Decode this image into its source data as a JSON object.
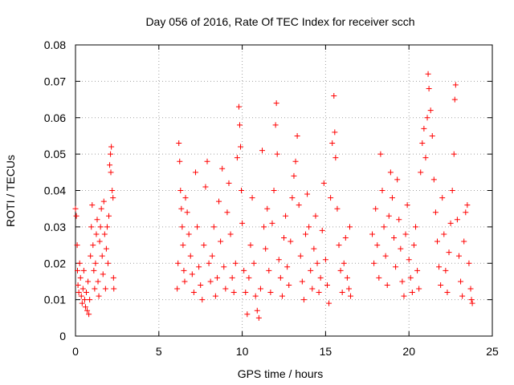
{
  "chart_data": {
    "type": "scatter",
    "title": "Day 056 of 2016, Rate Of TEC Index for receiver scch",
    "xlabel": "GPS time / hours",
    "ylabel": "ROTI / TECUs",
    "xlim": [
      0,
      25
    ],
    "ylim": [
      0,
      0.08
    ],
    "x_ticks": [
      "0",
      "5",
      "10",
      "15",
      "20",
      "25"
    ],
    "y_ticks": [
      "0",
      "0.01",
      "0.02",
      "0.03",
      "0.04",
      "0.05",
      "0.06",
      "0.07",
      "0.08"
    ],
    "x_tick_values": [
      0,
      5,
      10,
      15,
      20,
      25
    ],
    "y_tick_values": [
      0,
      0.01,
      0.02,
      0.03,
      0.04,
      0.05,
      0.06,
      0.07,
      0.08
    ],
    "grid": true,
    "marker": "+",
    "marker_color": "#ff0000",
    "series": [
      {
        "points": [
          [
            0.0,
            0.035
          ],
          [
            0.05,
            0.033
          ],
          [
            0.1,
            0.025
          ],
          [
            0.12,
            0.018
          ],
          [
            0.15,
            0.014
          ],
          [
            0.2,
            0.012
          ],
          [
            0.25,
            0.02
          ],
          [
            0.3,
            0.016
          ],
          [
            0.35,
            0.011
          ],
          [
            0.4,
            0.009
          ],
          [
            0.45,
            0.013
          ],
          [
            0.5,
            0.018
          ],
          [
            0.55,
            0.01
          ],
          [
            0.6,
            0.008
          ],
          [
            0.65,
            0.012
          ],
          [
            0.7,
            0.007
          ],
          [
            0.75,
            0.015
          ],
          [
            0.8,
            0.006
          ],
          [
            0.85,
            0.01
          ],
          [
            0.9,
            0.022
          ],
          [
            0.95,
            0.03
          ],
          [
            1.0,
            0.036
          ],
          [
            1.05,
            0.025
          ],
          [
            1.1,
            0.018
          ],
          [
            1.15,
            0.013
          ],
          [
            1.2,
            0.02
          ],
          [
            1.25,
            0.028
          ],
          [
            1.3,
            0.032
          ],
          [
            1.35,
            0.015
          ],
          [
            1.4,
            0.011
          ],
          [
            1.45,
            0.026
          ],
          [
            1.5,
            0.03
          ],
          [
            1.55,
            0.035
          ],
          [
            1.6,
            0.022
          ],
          [
            1.65,
            0.017
          ],
          [
            1.7,
            0.037
          ],
          [
            1.75,
            0.028
          ],
          [
            1.8,
            0.013
          ],
          [
            1.85,
            0.024
          ],
          [
            1.9,
            0.03
          ],
          [
            1.95,
            0.02
          ],
          [
            2.0,
            0.033
          ],
          [
            2.05,
            0.047
          ],
          [
            2.1,
            0.05
          ],
          [
            2.12,
            0.045
          ],
          [
            2.15,
            0.052
          ],
          [
            2.2,
            0.04
          ],
          [
            2.25,
            0.038
          ],
          [
            2.28,
            0.016
          ],
          [
            2.3,
            0.013
          ],
          [
            6.1,
            0.013
          ],
          [
            6.15,
            0.02
          ],
          [
            6.2,
            0.053
          ],
          [
            6.25,
            0.048
          ],
          [
            6.3,
            0.04
          ],
          [
            6.35,
            0.035
          ],
          [
            6.4,
            0.03
          ],
          [
            6.45,
            0.025
          ],
          [
            6.5,
            0.018
          ],
          [
            6.55,
            0.015
          ],
          [
            6.6,
            0.038
          ],
          [
            6.7,
            0.034
          ],
          [
            6.8,
            0.028
          ],
          [
            6.9,
            0.022
          ],
          [
            7.0,
            0.017
          ],
          [
            7.1,
            0.012
          ],
          [
            7.2,
            0.045
          ],
          [
            7.3,
            0.03
          ],
          [
            7.4,
            0.019
          ],
          [
            7.5,
            0.014
          ],
          [
            7.6,
            0.01
          ],
          [
            7.7,
            0.025
          ],
          [
            7.8,
            0.041
          ],
          [
            7.9,
            0.048
          ],
          [
            8.0,
            0.02
          ],
          [
            8.1,
            0.015
          ],
          [
            8.2,
            0.022
          ],
          [
            8.3,
            0.03
          ],
          [
            8.4,
            0.011
          ],
          [
            8.5,
            0.016
          ],
          [
            8.6,
            0.037
          ],
          [
            8.7,
            0.026
          ],
          [
            8.8,
            0.046
          ],
          [
            8.9,
            0.019
          ],
          [
            9.0,
            0.013
          ],
          [
            9.1,
            0.034
          ],
          [
            9.2,
            0.042
          ],
          [
            9.3,
            0.028
          ],
          [
            9.4,
            0.016
          ],
          [
            9.5,
            0.012
          ],
          [
            9.6,
            0.02
          ],
          [
            9.7,
            0.049
          ],
          [
            9.8,
            0.063
          ],
          [
            9.85,
            0.058
          ],
          [
            9.9,
            0.052
          ],
          [
            9.95,
            0.04
          ],
          [
            10.0,
            0.031
          ],
          [
            10.1,
            0.018
          ],
          [
            10.2,
            0.012
          ],
          [
            10.3,
            0.006
          ],
          [
            10.4,
            0.016
          ],
          [
            10.5,
            0.025
          ],
          [
            10.6,
            0.038
          ],
          [
            10.7,
            0.02
          ],
          [
            10.8,
            0.011
          ],
          [
            10.9,
            0.007
          ],
          [
            11.0,
            0.005
          ],
          [
            11.1,
            0.013
          ],
          [
            11.2,
            0.051
          ],
          [
            11.3,
            0.03
          ],
          [
            11.4,
            0.024
          ],
          [
            11.5,
            0.035
          ],
          [
            11.6,
            0.018
          ],
          [
            11.7,
            0.012
          ],
          [
            11.8,
            0.031
          ],
          [
            11.9,
            0.04
          ],
          [
            12.0,
            0.058
          ],
          [
            12.05,
            0.064
          ],
          [
            12.1,
            0.05
          ],
          [
            12.2,
            0.021
          ],
          [
            12.3,
            0.016
          ],
          [
            12.4,
            0.011
          ],
          [
            12.5,
            0.027
          ],
          [
            12.6,
            0.033
          ],
          [
            12.7,
            0.019
          ],
          [
            12.8,
            0.014
          ],
          [
            12.9,
            0.026
          ],
          [
            13.0,
            0.038
          ],
          [
            13.1,
            0.044
          ],
          [
            13.2,
            0.048
          ],
          [
            13.3,
            0.055
          ],
          [
            13.4,
            0.036
          ],
          [
            13.5,
            0.022
          ],
          [
            13.6,
            0.015
          ],
          [
            13.7,
            0.01
          ],
          [
            13.8,
            0.028
          ],
          [
            13.9,
            0.039
          ],
          [
            14.0,
            0.03
          ],
          [
            14.1,
            0.018
          ],
          [
            14.2,
            0.013
          ],
          [
            14.3,
            0.024
          ],
          [
            14.4,
            0.033
          ],
          [
            14.5,
            0.02
          ],
          [
            14.6,
            0.012
          ],
          [
            14.7,
            0.016
          ],
          [
            14.8,
            0.029
          ],
          [
            14.9,
            0.042
          ],
          [
            15.0,
            0.021
          ],
          [
            15.1,
            0.014
          ],
          [
            15.2,
            0.009
          ],
          [
            15.3,
            0.038
          ],
          [
            15.4,
            0.053
          ],
          [
            15.5,
            0.066
          ],
          [
            15.55,
            0.056
          ],
          [
            15.6,
            0.049
          ],
          [
            15.7,
            0.035
          ],
          [
            15.8,
            0.025
          ],
          [
            15.9,
            0.018
          ],
          [
            16.0,
            0.012
          ],
          [
            16.1,
            0.02
          ],
          [
            16.2,
            0.027
          ],
          [
            16.3,
            0.016
          ],
          [
            16.4,
            0.013
          ],
          [
            16.45,
            0.03
          ],
          [
            16.5,
            0.011
          ],
          [
            17.8,
            0.028
          ],
          [
            17.9,
            0.02
          ],
          [
            18.0,
            0.035
          ],
          [
            18.1,
            0.025
          ],
          [
            18.2,
            0.016
          ],
          [
            18.3,
            0.05
          ],
          [
            18.4,
            0.04
          ],
          [
            18.5,
            0.03
          ],
          [
            18.6,
            0.022
          ],
          [
            18.7,
            0.014
          ],
          [
            18.8,
            0.033
          ],
          [
            18.9,
            0.045
          ],
          [
            19.0,
            0.038
          ],
          [
            19.1,
            0.027
          ],
          [
            19.2,
            0.019
          ],
          [
            19.3,
            0.043
          ],
          [
            19.4,
            0.032
          ],
          [
            19.5,
            0.024
          ],
          [
            19.6,
            0.015
          ],
          [
            19.7,
            0.011
          ],
          [
            19.8,
            0.028
          ],
          [
            19.9,
            0.036
          ],
          [
            20.0,
            0.021
          ],
          [
            20.1,
            0.016
          ],
          [
            20.2,
            0.012
          ],
          [
            20.3,
            0.025
          ],
          [
            20.4,
            0.03
          ],
          [
            20.5,
            0.018
          ],
          [
            20.6,
            0.013
          ],
          [
            20.7,
            0.045
          ],
          [
            20.8,
            0.053
          ],
          [
            20.9,
            0.057
          ],
          [
            21.0,
            0.049
          ],
          [
            21.1,
            0.06
          ],
          [
            21.15,
            0.072
          ],
          [
            21.2,
            0.068
          ],
          [
            21.3,
            0.062
          ],
          [
            21.4,
            0.055
          ],
          [
            21.5,
            0.043
          ],
          [
            21.6,
            0.034
          ],
          [
            21.7,
            0.026
          ],
          [
            21.8,
            0.019
          ],
          [
            21.9,
            0.014
          ],
          [
            22.0,
            0.038
          ],
          [
            22.1,
            0.028
          ],
          [
            22.2,
            0.018
          ],
          [
            22.3,
            0.012
          ],
          [
            22.4,
            0.023
          ],
          [
            22.5,
            0.031
          ],
          [
            22.6,
            0.04
          ],
          [
            22.7,
            0.05
          ],
          [
            22.75,
            0.065
          ],
          [
            22.8,
            0.069
          ],
          [
            22.9,
            0.032
          ],
          [
            23.0,
            0.022
          ],
          [
            23.1,
            0.015
          ],
          [
            23.2,
            0.011
          ],
          [
            23.3,
            0.026
          ],
          [
            23.4,
            0.034
          ],
          [
            23.5,
            0.036
          ],
          [
            23.6,
            0.02
          ],
          [
            23.7,
            0.013
          ],
          [
            23.75,
            0.01
          ],
          [
            23.8,
            0.009
          ]
        ]
      }
    ]
  }
}
